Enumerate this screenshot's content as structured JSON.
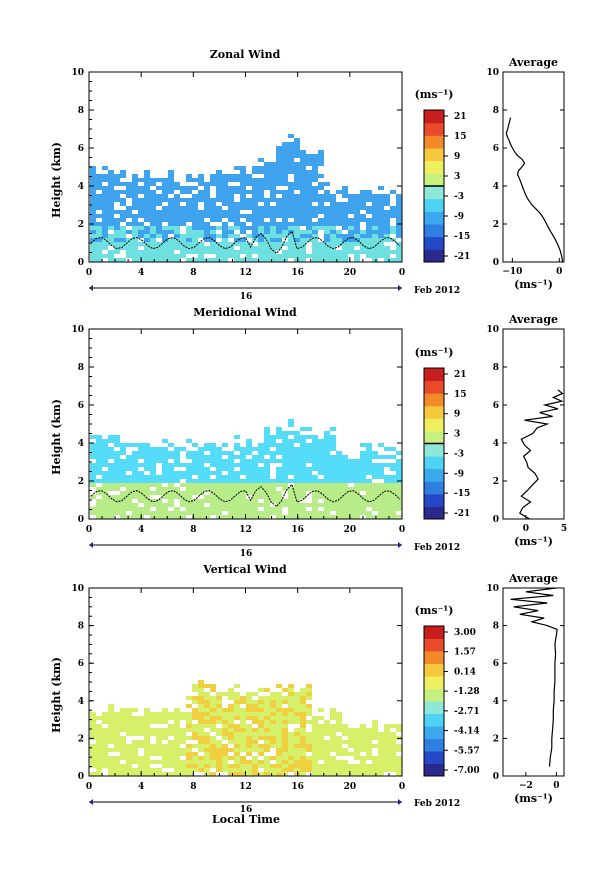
{
  "page": {
    "xlabel_bottom": "Local Time"
  },
  "colors": {
    "scale": [
      "#2a2a8c",
      "#2548c8",
      "#2f7fe0",
      "#3aa9ee",
      "#4fd3f4",
      "#8ee8d8",
      "#c8f080",
      "#eef060",
      "#f6c83c",
      "#f28a2a",
      "#e84a2a",
      "#c81e1e"
    ],
    "zonal_mid": "#3fa3ee",
    "zonal_low": "#6fe0e0",
    "merid_mid": "#55dcf8",
    "merid_low": "#b8ec88",
    "vert_main": "#d6f06a",
    "vert_hi": "#f0d040",
    "frame": "#000000"
  },
  "chart_data": [
    {
      "type": "heatmap",
      "title": "Zonal Wind",
      "ylabel": "Height (km)",
      "ylim": [
        0,
        10
      ],
      "yticks": [
        "0",
        "2",
        "4",
        "6",
        "8",
        "10"
      ],
      "xticks": [
        "0",
        "4",
        "8",
        "12",
        "16",
        "20",
        "0"
      ],
      "date_label": "16",
      "month_label": "Feb 2012",
      "colorbar": {
        "unit": "(ms⁻¹)",
        "labels": [
          "21",
          "15",
          "9",
          "3",
          "-3",
          "-9",
          "-15",
          "-21"
        ]
      },
      "average": {
        "title": "Average",
        "unit": "(ms⁻¹)",
        "xlim": [
          -12,
          1
        ],
        "xticks": [
          "-10",
          "0"
        ],
        "profile": [
          [
            0.7,
            0.0
          ],
          [
            0.5,
            0.3
          ],
          [
            0.2,
            0.6
          ],
          [
            -0.3,
            0.9
          ],
          [
            -0.9,
            1.2
          ],
          [
            -1.6,
            1.5
          ],
          [
            -2.3,
            1.8
          ],
          [
            -2.9,
            2.1
          ],
          [
            -3.6,
            2.4
          ],
          [
            -4.2,
            2.6
          ],
          [
            -5.0,
            2.8
          ],
          [
            -5.8,
            3.0
          ],
          [
            -6.4,
            3.2
          ],
          [
            -6.9,
            3.4
          ],
          [
            -7.3,
            3.6
          ],
          [
            -7.6,
            3.8
          ],
          [
            -7.9,
            4.0
          ],
          [
            -8.2,
            4.2
          ],
          [
            -8.5,
            4.4
          ],
          [
            -8.9,
            4.6
          ],
          [
            -8.7,
            4.8
          ],
          [
            -8.0,
            5.0
          ],
          [
            -7.4,
            5.2
          ],
          [
            -7.9,
            5.4
          ],
          [
            -8.9,
            5.6
          ],
          [
            -9.5,
            5.8
          ],
          [
            -10.0,
            6.0
          ],
          [
            -10.4,
            6.2
          ],
          [
            -10.7,
            6.4
          ],
          [
            -11.1,
            6.6
          ],
          [
            -11.3,
            6.8
          ],
          [
            -11.0,
            7.0
          ],
          [
            -10.8,
            7.2
          ],
          [
            -10.6,
            7.4
          ],
          [
            -10.4,
            7.6
          ]
        ]
      }
    },
    {
      "type": "heatmap",
      "title": "Meridional Wind",
      "ylabel": "Height (km)",
      "ylim": [
        0,
        10
      ],
      "yticks": [
        "0",
        "2",
        "4",
        "6",
        "8",
        "10"
      ],
      "xticks": [
        "0",
        "4",
        "8",
        "12",
        "16",
        "20",
        "0"
      ],
      "date_label": "16",
      "month_label": "Feb 2012",
      "colorbar": {
        "unit": "(ms⁻¹)",
        "labels": [
          "21",
          "15",
          "9",
          "3",
          "-3",
          "-9",
          "-15",
          "-21"
        ]
      },
      "average": {
        "title": "Average",
        "unit": "(ms⁻¹)",
        "xlim": [
          -3,
          5
        ],
        "xticks": [
          "0",
          "5"
        ],
        "profile": [
          [
            0.5,
            0.0
          ],
          [
            -0.8,
            0.3
          ],
          [
            -0.4,
            0.6
          ],
          [
            0.6,
            0.9
          ],
          [
            -0.6,
            1.2
          ],
          [
            0.2,
            1.5
          ],
          [
            0.9,
            1.8
          ],
          [
            1.6,
            2.1
          ],
          [
            1.2,
            2.4
          ],
          [
            0.3,
            2.7
          ],
          [
            0.1,
            3.0
          ],
          [
            -0.3,
            3.3
          ],
          [
            0.6,
            3.6
          ],
          [
            -0.2,
            3.9
          ],
          [
            -0.6,
            4.2
          ],
          [
            0.9,
            4.5
          ],
          [
            1.5,
            4.8
          ],
          [
            2.8,
            5.0
          ],
          [
            -0.2,
            5.2
          ],
          [
            3.5,
            5.4
          ],
          [
            1.8,
            5.6
          ],
          [
            4.2,
            5.8
          ],
          [
            2.5,
            6.0
          ],
          [
            4.7,
            6.2
          ],
          [
            3.6,
            6.4
          ],
          [
            4.8,
            6.6
          ],
          [
            4.2,
            6.8
          ]
        ]
      }
    },
    {
      "type": "heatmap",
      "title": "Vertical Wind",
      "ylabel": "Height (km)",
      "ylim": [
        0,
        10
      ],
      "yticks": [
        "0",
        "2",
        "4",
        "6",
        "8",
        "10"
      ],
      "xticks": [
        "0",
        "4",
        "8",
        "12",
        "16",
        "20",
        "0"
      ],
      "date_label": "16",
      "month_label": "Feb 2012",
      "colorbar": {
        "unit": "(ms⁻¹)",
        "labels": [
          "3.00",
          "1.57",
          "0.14",
          "-1.28",
          "-2.71",
          "-4.14",
          "-5.57",
          "-7.00"
        ]
      },
      "average": {
        "title": "Average",
        "unit": "(ms⁻¹)",
        "xlim": [
          -3.5,
          0.5
        ],
        "xticks": [
          "-2",
          "0"
        ],
        "profile": [
          [
            -0.45,
            0.5
          ],
          [
            -0.4,
            1.0
          ],
          [
            -0.3,
            1.5
          ],
          [
            -0.3,
            2.0
          ],
          [
            -0.25,
            2.5
          ],
          [
            -0.2,
            3.0
          ],
          [
            -0.2,
            3.5
          ],
          [
            -0.15,
            4.0
          ],
          [
            -0.15,
            4.5
          ],
          [
            -0.1,
            5.0
          ],
          [
            -0.1,
            5.5
          ],
          [
            -0.1,
            6.0
          ],
          [
            -0.05,
            6.5
          ],
          [
            -0.1,
            7.0
          ],
          [
            0.0,
            7.5
          ],
          [
            0.05,
            7.8
          ],
          [
            -0.6,
            8.0
          ],
          [
            -1.6,
            8.2
          ],
          [
            -0.8,
            8.4
          ],
          [
            -2.4,
            8.6
          ],
          [
            -1.2,
            8.8
          ],
          [
            -2.8,
            9.0
          ],
          [
            -0.6,
            9.2
          ],
          [
            -3.0,
            9.4
          ],
          [
            -0.2,
            9.6
          ],
          [
            -2.0,
            9.8
          ],
          [
            0.0,
            10.0
          ]
        ]
      }
    }
  ]
}
